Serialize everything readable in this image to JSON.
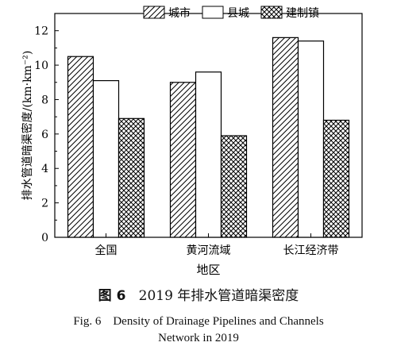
{
  "chart_data": {
    "type": "bar",
    "categories": [
      "全国",
      "黄河流域",
      "长江经济带"
    ],
    "series": [
      {
        "name": "城市",
        "values": [
          10.5,
          9.0,
          11.6
        ],
        "pattern": "diagonal-hatch"
      },
      {
        "name": "县城",
        "values": [
          9.1,
          9.6,
          11.4
        ],
        "pattern": "solid-white"
      },
      {
        "name": "建制镇",
        "values": [
          6.9,
          5.9,
          6.8
        ],
        "pattern": "cross-hatch"
      }
    ],
    "xlabel": "地区",
    "ylabel": "排水管道暗渠密度/(km·km⁻²)",
    "ylim": [
      0,
      13
    ],
    "yticks": [
      0,
      2,
      4,
      6,
      8,
      10,
      12
    ],
    "legend_position": "top-right",
    "grid": false
  },
  "caption": {
    "fig_label_cn": "图 6",
    "title_cn": "2019 年排水管道暗渠密度",
    "fig_label_en": "Fig. 6",
    "title_en_line1": "Density of Drainage Pipelines and Channels",
    "title_en_line2": "Network in 2019"
  }
}
